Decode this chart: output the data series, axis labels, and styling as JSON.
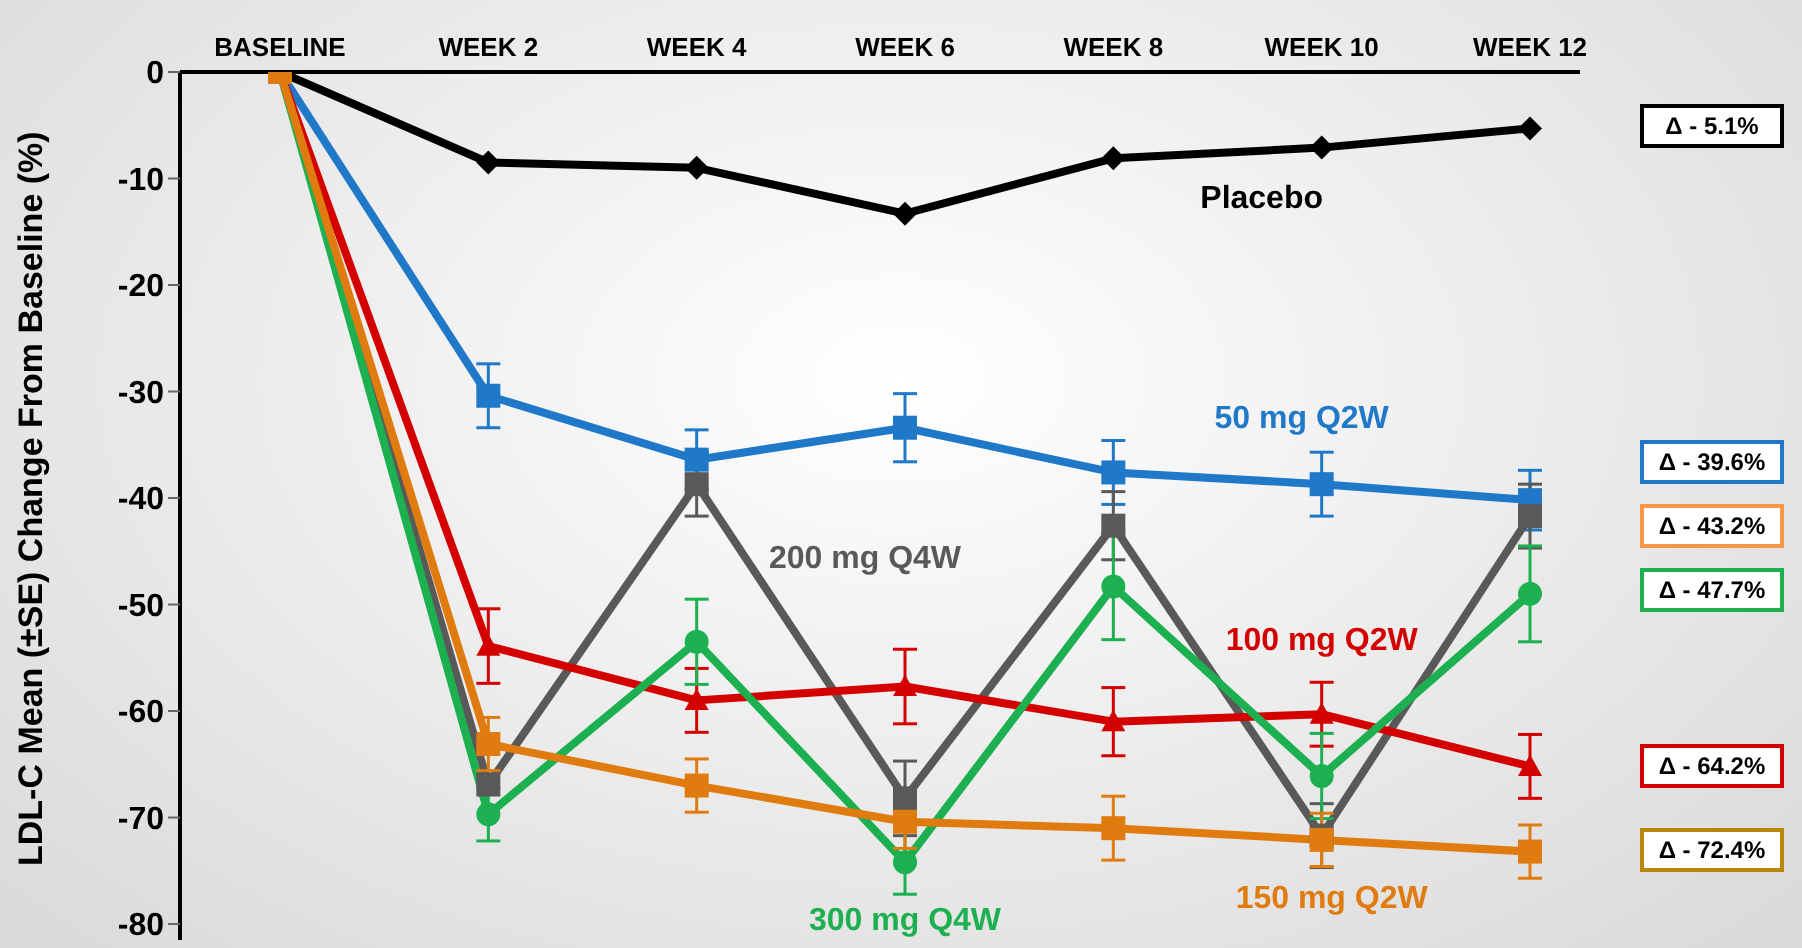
{
  "chart_data": {
    "type": "line",
    "ylabel": "LDL-C Mean (±SE) Change From Baseline (%)",
    "categories": [
      "BASELINE",
      "WEEK 2",
      "WEEK 4",
      "WEEK 6",
      "WEEK 8",
      "WEEK 10",
      "WEEK 12"
    ],
    "ylim": [
      -81.5,
      0
    ],
    "yticks": [
      0,
      -10,
      -20,
      -30,
      -40,
      -50,
      -60,
      -70,
      -80
    ],
    "series": [
      {
        "name": "Placebo",
        "color": "#000000",
        "marker": "diamond",
        "values": [
          0,
          -8.5,
          -9.0,
          -13.3,
          -8.1,
          -7.1,
          -5.3
        ]
      },
      {
        "name": "50 mg Q2W",
        "color": "#1f78c8",
        "marker": "square",
        "values": [
          0,
          -30.4,
          -36.4,
          -33.4,
          -37.6,
          -38.7,
          -40.2
        ],
        "errors": [
          null,
          3,
          2.8,
          3.2,
          3,
          3,
          2.8
        ]
      },
      {
        "name": "200 mg Q4W",
        "color": "#595959",
        "marker": "square",
        "values": [
          0,
          -66.9,
          -38.7,
          -68.2,
          -42.6,
          -71.7,
          -41.7
        ],
        "errors": [
          null,
          null,
          3,
          3.5,
          3.2,
          3,
          3
        ]
      },
      {
        "name": "100 mg Q2W",
        "color": "#d40000",
        "marker": "triangle",
        "values": [
          0,
          -53.9,
          -59.0,
          -57.7,
          -61.0,
          -60.3,
          -65.2
        ],
        "errors": [
          null,
          3.5,
          3,
          3.5,
          3.2,
          3,
          3
        ]
      },
      {
        "name": "300 mg Q4W",
        "color": "#1cb050",
        "marker": "circle",
        "values": [
          0,
          -69.7,
          -53.5,
          -74.2,
          -48.3,
          -66.1,
          -49.0
        ],
        "errors": [
          null,
          2.5,
          4,
          3,
          5,
          4,
          4.5
        ]
      },
      {
        "name": "150 mg Q2W",
        "color": "#e07b10",
        "marker": "square",
        "values": [
          0,
          -63.1,
          -67.0,
          -70.4,
          -71.0,
          -72.1,
          -73.2
        ],
        "errors": [
          null,
          2.5,
          2.5,
          2.5,
          3,
          2.5,
          2.5
        ]
      }
    ],
    "annotations": [
      "Δ - 5.1%",
      "Δ - 39.6%",
      "Δ - 43.2%",
      "Δ - 47.7%",
      "Δ - 64.2%",
      "Δ - 72.4%"
    ]
  }
}
